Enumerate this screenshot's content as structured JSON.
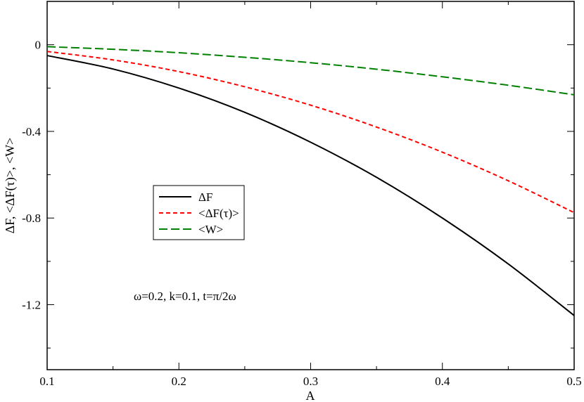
{
  "chart_data": {
    "type": "line",
    "xlabel": "A",
    "ylabel": "ΔF, <ΔF(τ)>, <W>",
    "xlim": [
      0.1,
      0.5
    ],
    "ylim": [
      -1.5,
      0.2
    ],
    "x_ticks": [
      0.1,
      0.2,
      0.3,
      0.4,
      0.5
    ],
    "x_tick_labels": [
      "0.1",
      "0.2",
      "0.3",
      "0.4",
      "0.5"
    ],
    "y_ticks": [
      0,
      -0.4,
      -0.8,
      -1.2
    ],
    "y_tick_labels": [
      "0",
      "-0.4",
      "-0.8",
      "-1.2"
    ],
    "grid": false,
    "legend_position": "center-left",
    "annotation": "ω=0.2, k=0.1, t=π/2ω",
    "x": [
      0.1,
      0.15,
      0.2,
      0.25,
      0.3,
      0.35,
      0.4,
      0.45,
      0.5
    ],
    "series": [
      {
        "name": "ΔF",
        "color": "#000000",
        "dash": "solid",
        "values": [
          -0.05,
          -0.112,
          -0.2,
          -0.312,
          -0.45,
          -0.612,
          -0.8,
          -1.012,
          -1.25
        ]
      },
      {
        "name": "<ΔF(τ)>",
        "color": "#ff0000",
        "dash": "short-dash",
        "values": [
          -0.031,
          -0.07,
          -0.124,
          -0.194,
          -0.279,
          -0.38,
          -0.496,
          -0.628,
          -0.775
        ]
      },
      {
        "name": "<W>",
        "color": "#008000",
        "dash": "long-dash",
        "values": [
          -0.009,
          -0.021,
          -0.037,
          -0.058,
          -0.083,
          -0.113,
          -0.148,
          -0.187,
          -0.231
        ]
      }
    ]
  }
}
